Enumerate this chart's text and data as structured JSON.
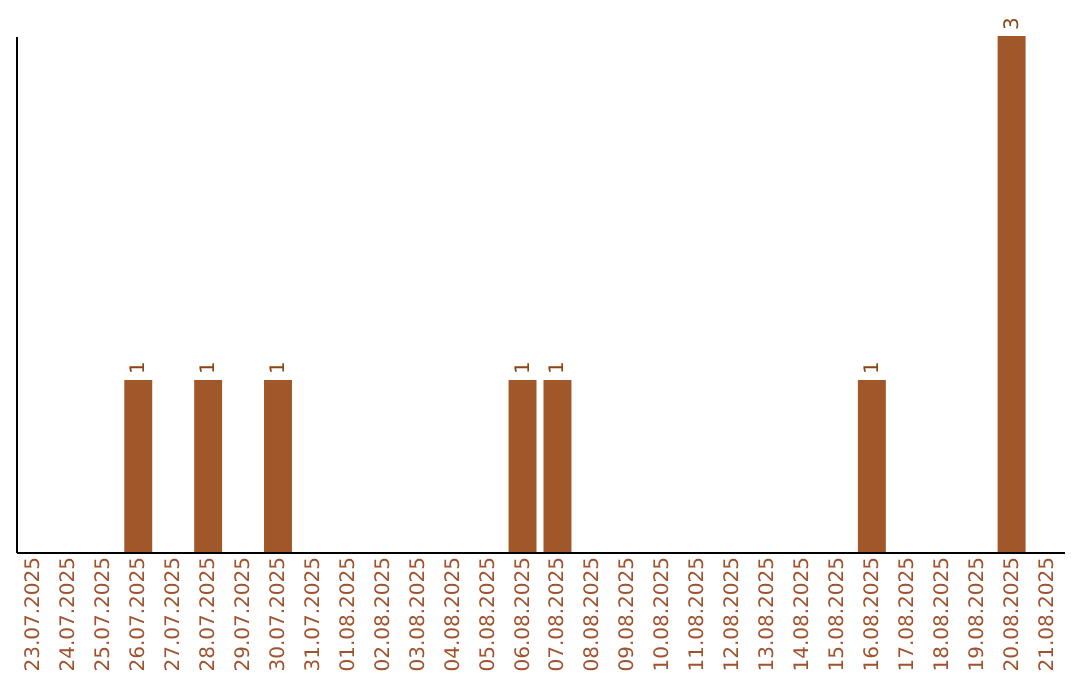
{
  "chart_data": {
    "type": "bar",
    "categories": [
      "23.07.2025",
      "24.07.2025",
      "25.07.2025",
      "26.07.2025",
      "27.07.2025",
      "28.07.2025",
      "29.07.2025",
      "30.07.2025",
      "31.07.2025",
      "01.08.2025",
      "02.08.2025",
      "03.08.2025",
      "04.08.2025",
      "05.08.2025",
      "06.08.2025",
      "07.08.2025",
      "08.08.2025",
      "09.08.2025",
      "10.08.2025",
      "11.08.2025",
      "12.08.2025",
      "13.08.2025",
      "14.08.2025",
      "15.08.2025",
      "16.08.2025",
      "17.08.2025",
      "18.08.2025",
      "19.08.2025",
      "20.08.2025",
      "21.08.2025"
    ],
    "values": [
      0,
      0,
      0,
      1,
      0,
      1,
      0,
      1,
      0,
      0,
      0,
      0,
      0,
      0,
      1,
      1,
      0,
      0,
      0,
      0,
      0,
      0,
      0,
      0,
      1,
      0,
      0,
      0,
      3,
      0
    ],
    "value_labels": [
      null,
      null,
      null,
      "1",
      null,
      "1",
      null,
      "1",
      null,
      null,
      null,
      null,
      null,
      null,
      "1",
      "1",
      null,
      null,
      null,
      null,
      null,
      null,
      null,
      null,
      "1",
      null,
      null,
      null,
      "3",
      null
    ],
    "color": "#a0582b",
    "grid": false,
    "tick_labels": "x"
  }
}
